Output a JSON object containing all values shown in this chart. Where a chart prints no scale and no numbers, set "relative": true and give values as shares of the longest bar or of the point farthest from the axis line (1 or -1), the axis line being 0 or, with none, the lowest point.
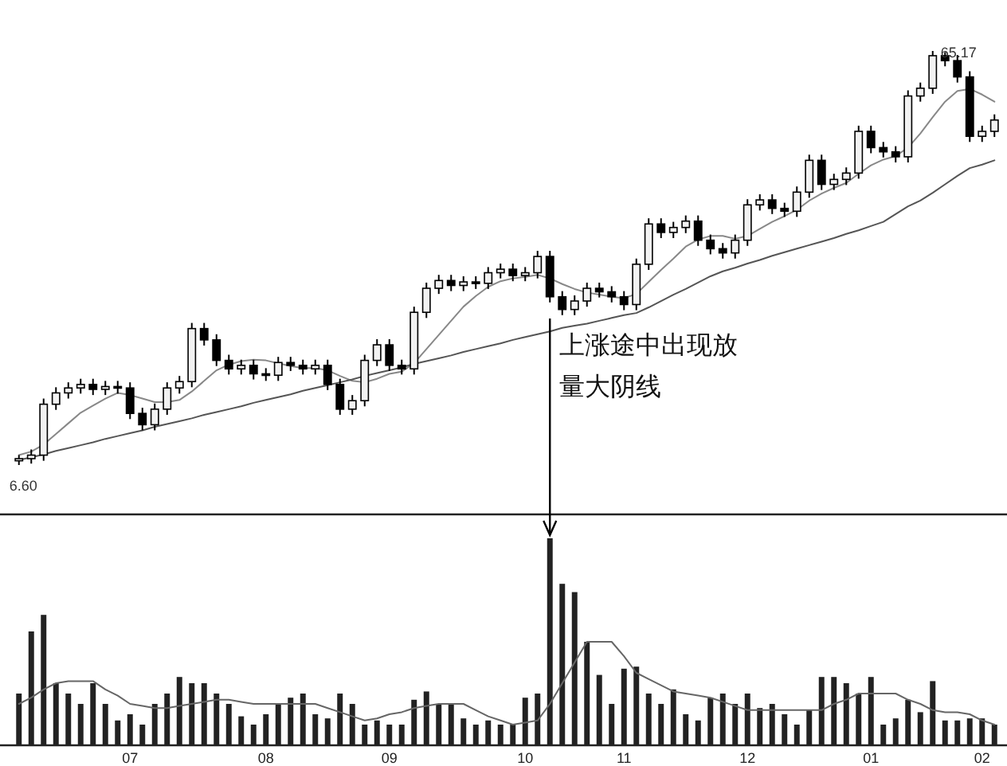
{
  "chart_data": [
    {
      "type": "candlestick",
      "color": "#000000",
      "tick_labels": false,
      "categories": [
        null,
        null,
        null,
        null,
        null,
        null,
        null,
        null,
        null,
        "07",
        null,
        null,
        null,
        null,
        null,
        null,
        null,
        null,
        null,
        null,
        "08",
        null,
        null,
        null,
        null,
        null,
        null,
        null,
        null,
        null,
        "09",
        null,
        null,
        null,
        null,
        null,
        null,
        null,
        null,
        null,
        null,
        "10",
        null,
        null,
        null,
        null,
        null,
        null,
        null,
        "11",
        null,
        null,
        null,
        null,
        null,
        null,
        null,
        null,
        null,
        "12",
        null,
        null,
        null,
        null,
        null,
        null,
        null,
        null,
        null,
        "01",
        null,
        null,
        null,
        null,
        null,
        null,
        null,
        null,
        "02",
        null
      ],
      "ohlc": [
        [
          7.2,
          8.0,
          6.6,
          7.5
        ],
        [
          7.5,
          8.8,
          6.8,
          8.0
        ],
        [
          8.0,
          16.0,
          7.2,
          15.2
        ],
        [
          15.2,
          17.6,
          14.4,
          16.8
        ],
        [
          16.8,
          18.3,
          16.0,
          17.5
        ],
        [
          17.5,
          18.8,
          16.7,
          18.0
        ],
        [
          18.0,
          18.8,
          16.5,
          17.3
        ],
        [
          17.3,
          18.5,
          16.5,
          17.7
        ],
        [
          17.7,
          18.5,
          16.7,
          17.5
        ],
        [
          17.5,
          18.3,
          13.1,
          13.9
        ],
        [
          13.9,
          14.7,
          11.5,
          12.3
        ],
        [
          12.3,
          15.3,
          11.5,
          14.5
        ],
        [
          14.5,
          18.3,
          13.7,
          17.5
        ],
        [
          17.5,
          19.2,
          16.7,
          18.4
        ],
        [
          18.4,
          26.7,
          17.6,
          25.9
        ],
        [
          25.9,
          26.7,
          23.5,
          24.3
        ],
        [
          24.3,
          25.1,
          20.6,
          21.4
        ],
        [
          21.4,
          22.2,
          19.4,
          20.2
        ],
        [
          20.2,
          21.5,
          19.4,
          20.7
        ],
        [
          20.7,
          21.5,
          18.7,
          19.5
        ],
        [
          19.5,
          20.3,
          18.5,
          19.3
        ],
        [
          19.3,
          21.9,
          18.5,
          21.1
        ],
        [
          21.1,
          21.9,
          19.9,
          20.7
        ],
        [
          20.7,
          21.5,
          19.4,
          20.2
        ],
        [
          20.2,
          21.5,
          19.4,
          20.7
        ],
        [
          20.7,
          21.5,
          17.2,
          18.0
        ],
        [
          18.0,
          18.8,
          13.7,
          14.5
        ],
        [
          14.5,
          16.5,
          13.7,
          15.7
        ],
        [
          15.7,
          22.2,
          14.9,
          21.4
        ],
        [
          21.4,
          24.4,
          20.6,
          23.6
        ],
        [
          23.6,
          24.4,
          19.9,
          20.7
        ],
        [
          20.7,
          21.5,
          19.4,
          20.2
        ],
        [
          20.2,
          29.0,
          19.4,
          28.2
        ],
        [
          28.2,
          32.4,
          27.4,
          31.6
        ],
        [
          31.6,
          33.5,
          30.8,
          32.7
        ],
        [
          32.7,
          33.5,
          31.2,
          32.0
        ],
        [
          32.0,
          33.3,
          31.2,
          32.5
        ],
        [
          32.5,
          33.3,
          31.5,
          32.3
        ],
        [
          32.3,
          34.6,
          31.5,
          33.8
        ],
        [
          33.8,
          35.1,
          33.0,
          34.3
        ],
        [
          34.3,
          35.1,
          32.6,
          33.4
        ],
        [
          33.4,
          34.6,
          32.6,
          33.8
        ],
        [
          33.8,
          36.9,
          33.0,
          36.1
        ],
        [
          36.1,
          36.9,
          29.6,
          30.4
        ],
        [
          30.4,
          31.2,
          27.8,
          28.6
        ],
        [
          28.6,
          30.6,
          27.8,
          29.8
        ],
        [
          29.8,
          32.4,
          29.0,
          31.6
        ],
        [
          31.6,
          32.4,
          30.3,
          31.1
        ],
        [
          31.1,
          31.9,
          29.6,
          30.4
        ],
        [
          30.4,
          31.2,
          28.5,
          29.3
        ],
        [
          29.3,
          35.8,
          28.5,
          35.0
        ],
        [
          35.0,
          41.5,
          34.2,
          40.7
        ],
        [
          40.7,
          41.5,
          38.7,
          39.5
        ],
        [
          39.5,
          41.0,
          38.7,
          40.2
        ],
        [
          40.2,
          41.9,
          39.4,
          41.1
        ],
        [
          41.1,
          41.9,
          37.6,
          38.4
        ],
        [
          38.4,
          39.2,
          36.4,
          37.2
        ],
        [
          37.2,
          38.0,
          35.8,
          36.6
        ],
        [
          36.6,
          39.2,
          35.8,
          38.4
        ],
        [
          38.4,
          44.2,
          37.6,
          43.4
        ],
        [
          43.4,
          44.9,
          42.6,
          44.1
        ],
        [
          44.1,
          44.9,
          42.1,
          42.9
        ],
        [
          42.9,
          43.7,
          41.7,
          42.5
        ],
        [
          42.5,
          46.0,
          41.7,
          45.2
        ],
        [
          45.2,
          50.5,
          44.4,
          49.7
        ],
        [
          49.7,
          50.5,
          45.5,
          46.3
        ],
        [
          46.3,
          47.8,
          45.5,
          47.0
        ],
        [
          47.0,
          48.7,
          46.2,
          47.9
        ],
        [
          47.9,
          54.6,
          47.1,
          53.8
        ],
        [
          53.8,
          54.6,
          50.7,
          51.5
        ],
        [
          51.5,
          52.3,
          50.1,
          50.9
        ],
        [
          50.9,
          51.7,
          49.4,
          50.2
        ],
        [
          50.2,
          59.6,
          49.4,
          58.8
        ],
        [
          58.8,
          60.7,
          58.0,
          59.9
        ],
        [
          59.9,
          65.17,
          59.1,
          64.5
        ],
        [
          64.5,
          65.0,
          63.0,
          63.8
        ],
        [
          63.8,
          64.6,
          60.7,
          61.5
        ],
        [
          61.5,
          62.3,
          52.3,
          53.1
        ],
        [
          53.1,
          54.6,
          52.3,
          53.8
        ],
        [
          53.8,
          56.2,
          53.0,
          55.4
        ]
      ],
      "series": [
        {
          "type": "line",
          "color": "#888888",
          "values": [
            8,
            8.5,
            9.5,
            11,
            12.5,
            14,
            15,
            16,
            16.8,
            16.5,
            16,
            15.5,
            15.5,
            15.8,
            17,
            18.5,
            20,
            20.8,
            21.3,
            21.5,
            21.4,
            21,
            20.6,
            20.3,
            20.3,
            20,
            19.2,
            18.5,
            18.3,
            18.8,
            19.5,
            19.8,
            21,
            23,
            25,
            27,
            29,
            30.5,
            31.8,
            32.6,
            33,
            33.2,
            33.5,
            33,
            32.2,
            31.5,
            31,
            30.7,
            30.4,
            30.2,
            30.8,
            32.5,
            34.2,
            35.8,
            37.5,
            38.5,
            39,
            39,
            38.6,
            39,
            40,
            41,
            41.8,
            42.7,
            44,
            45,
            45.8,
            46.5,
            47.8,
            49,
            49.8,
            50.3,
            51.5,
            53.5,
            55.8,
            58,
            59.5,
            59.8,
            59,
            58
          ]
        },
        {
          "type": "line",
          "color": "#555555",
          "values": [
            7.3,
            7.7,
            8.1,
            8.6,
            9.0,
            9.4,
            9.8,
            10.3,
            10.7,
            11.1,
            11.5,
            12.0,
            12.4,
            12.8,
            13.2,
            13.7,
            14.1,
            14.5,
            14.9,
            15.4,
            15.8,
            16.2,
            16.6,
            17.1,
            17.5,
            17.9,
            18.3,
            18.7,
            19.2,
            19.6,
            20.0,
            20.4,
            20.9,
            21.3,
            21.7,
            22.1,
            22.6,
            23.0,
            23.4,
            23.8,
            24.3,
            24.7,
            25.1,
            25.5,
            26.0,
            26.3,
            26.6,
            27.0,
            27.4,
            27.8,
            28.1,
            28.9,
            29.8,
            30.7,
            31.5,
            32.4,
            33.3,
            34.0,
            34.5,
            35.1,
            35.6,
            36.2,
            36.7,
            37.2,
            37.7,
            38.2,
            38.7,
            39.3,
            39.8,
            40.4,
            41.0,
            42.1,
            43.2,
            44.0,
            45.1,
            46.3,
            47.5,
            48.6,
            49.1,
            49.7
          ]
        }
      ],
      "annotations": [
        "上涨途中出现放量大阴线",
        {
          "text": "65.17",
          "y": 65.17
        },
        {
          "text": "6.60",
          "y": 6.6
        }
      ]
    },
    {
      "type": "bar",
      "relative": true,
      "categories": [
        null,
        null,
        null,
        null,
        null,
        null,
        null,
        null,
        null,
        "07",
        null,
        null,
        null,
        null,
        null,
        null,
        null,
        null,
        null,
        null,
        "08",
        null,
        null,
        null,
        null,
        null,
        null,
        null,
        null,
        null,
        "09",
        null,
        null,
        null,
        null,
        null,
        null,
        null,
        null,
        null,
        null,
        "10",
        null,
        null,
        null,
        null,
        null,
        null,
        null,
        "11",
        null,
        null,
        null,
        null,
        null,
        null,
        null,
        null,
        null,
        "12",
        null,
        null,
        null,
        null,
        null,
        null,
        null,
        null,
        null,
        "01",
        null,
        null,
        null,
        null,
        null,
        null,
        null,
        null,
        "02",
        null
      ],
      "series": [
        {
          "type": "bar",
          "color": "#222222",
          "values": [
            0.25,
            0.55,
            0.63,
            0.3,
            0.25,
            0.2,
            0.3,
            0.2,
            0.12,
            0.15,
            0.1,
            0.2,
            0.25,
            0.33,
            0.3,
            0.3,
            0.25,
            0.2,
            0.14,
            0.1,
            0.15,
            0.2,
            0.23,
            0.25,
            0.15,
            0.13,
            0.25,
            0.2,
            0.1,
            0.12,
            0.1,
            0.1,
            0.22,
            0.26,
            0.2,
            0.2,
            0.13,
            0.1,
            0.12,
            0.1,
            0.1,
            0.23,
            0.25,
            1.0,
            0.78,
            0.74,
            0.5,
            0.34,
            0.2,
            0.37,
            0.38,
            0.25,
            0.2,
            0.27,
            0.15,
            0.12,
            0.23,
            0.25,
            0.2,
            0.25,
            0.18,
            0.2,
            0.15,
            0.1,
            0.17,
            0.33,
            0.33,
            0.3,
            0.25,
            0.33,
            0.1,
            0.13,
            0.22,
            0.16,
            0.31,
            0.12,
            0.12,
            0.13,
            0.13,
            0.1
          ]
        },
        {
          "type": "line",
          "color": "#666666",
          "values": [
            0.2,
            0.23,
            0.27,
            0.3,
            0.31,
            0.31,
            0.31,
            0.27,
            0.24,
            0.2,
            0.19,
            0.18,
            0.18,
            0.19,
            0.2,
            0.21,
            0.22,
            0.22,
            0.21,
            0.2,
            0.2,
            0.2,
            0.2,
            0.2,
            0.2,
            0.18,
            0.16,
            0.14,
            0.12,
            0.13,
            0.15,
            0.16,
            0.18,
            0.19,
            0.2,
            0.2,
            0.2,
            0.17,
            0.14,
            0.12,
            0.1,
            0.11,
            0.12,
            0.2,
            0.3,
            0.4,
            0.5,
            0.5,
            0.5,
            0.43,
            0.35,
            0.32,
            0.29,
            0.26,
            0.25,
            0.24,
            0.23,
            0.21,
            0.19,
            0.17,
            0.17,
            0.17,
            0.17,
            0.17,
            0.17,
            0.17,
            0.2,
            0.22,
            0.25,
            0.25,
            0.25,
            0.25,
            0.22,
            0.2,
            0.17,
            0.16,
            0.16,
            0.15,
            0.12,
            0.1
          ]
        }
      ]
    }
  ]
}
